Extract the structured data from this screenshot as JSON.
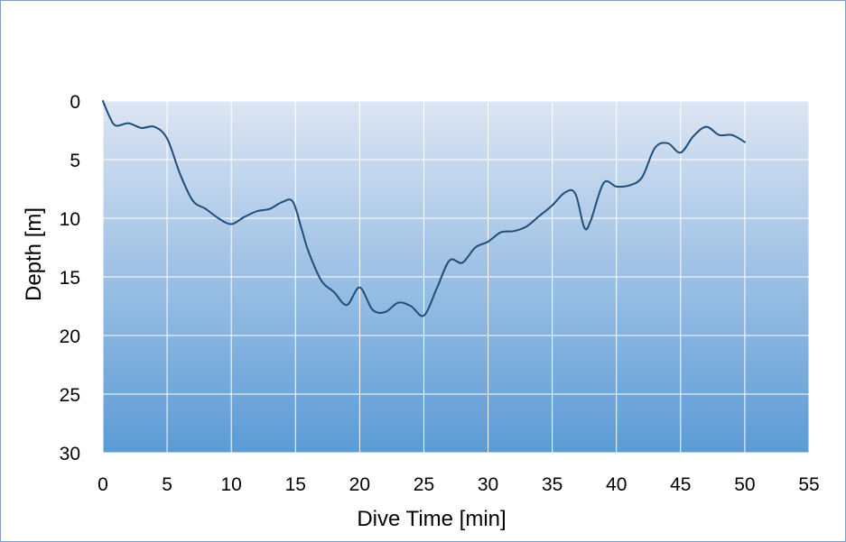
{
  "chart_data": {
    "type": "line",
    "title": "",
    "xlabel": "Dive Time [min]",
    "ylabel": "Depth [m]",
    "xlim": [
      0,
      55
    ],
    "ylim": [
      0,
      30
    ],
    "y_inverted": true,
    "xticks": [
      0,
      5,
      10,
      15,
      20,
      25,
      30,
      35,
      40,
      45,
      50,
      55
    ],
    "yticks": [
      0,
      5,
      10,
      15,
      20,
      25,
      30
    ],
    "grid": true,
    "legend": "none",
    "colors": {
      "line": "#1f4e79",
      "plot_bg_top": "#dde5f3",
      "plot_bg_bottom": "#5b9bd5",
      "grid": "#ffffff",
      "border": "#7f9fc4"
    },
    "series": [
      {
        "x": [
          0,
          0.5,
          1,
          2,
          3,
          4,
          5,
          6,
          7,
          8,
          9,
          10,
          11,
          12,
          13,
          14,
          14.8,
          15.5,
          16,
          17,
          18,
          19,
          20,
          21,
          22,
          23,
          24,
          25,
          26,
          27,
          28,
          29,
          30,
          31,
          32,
          33,
          34,
          35,
          36,
          36.8,
          37.5,
          38,
          39,
          40,
          41,
          42,
          43,
          44,
          45,
          46,
          47,
          48,
          49,
          50
        ],
        "y": [
          0,
          1.3,
          2.1,
          1.9,
          2.3,
          2.2,
          3.2,
          6.2,
          8.5,
          9.2,
          10.0,
          10.5,
          9.9,
          9.4,
          9.2,
          8.6,
          8.6,
          11.0,
          12.8,
          15.3,
          16.3,
          17.4,
          15.9,
          17.8,
          18.0,
          17.2,
          17.5,
          18.3,
          16.0,
          13.6,
          13.8,
          12.5,
          12.0,
          11.2,
          11.1,
          10.7,
          9.8,
          8.9,
          7.8,
          7.9,
          10.8,
          10.2,
          7.0,
          7.3,
          7.2,
          6.5,
          4.0,
          3.6,
          4.4,
          3.0,
          2.2,
          2.9,
          2.9,
          3.5
        ]
      }
    ]
  }
}
